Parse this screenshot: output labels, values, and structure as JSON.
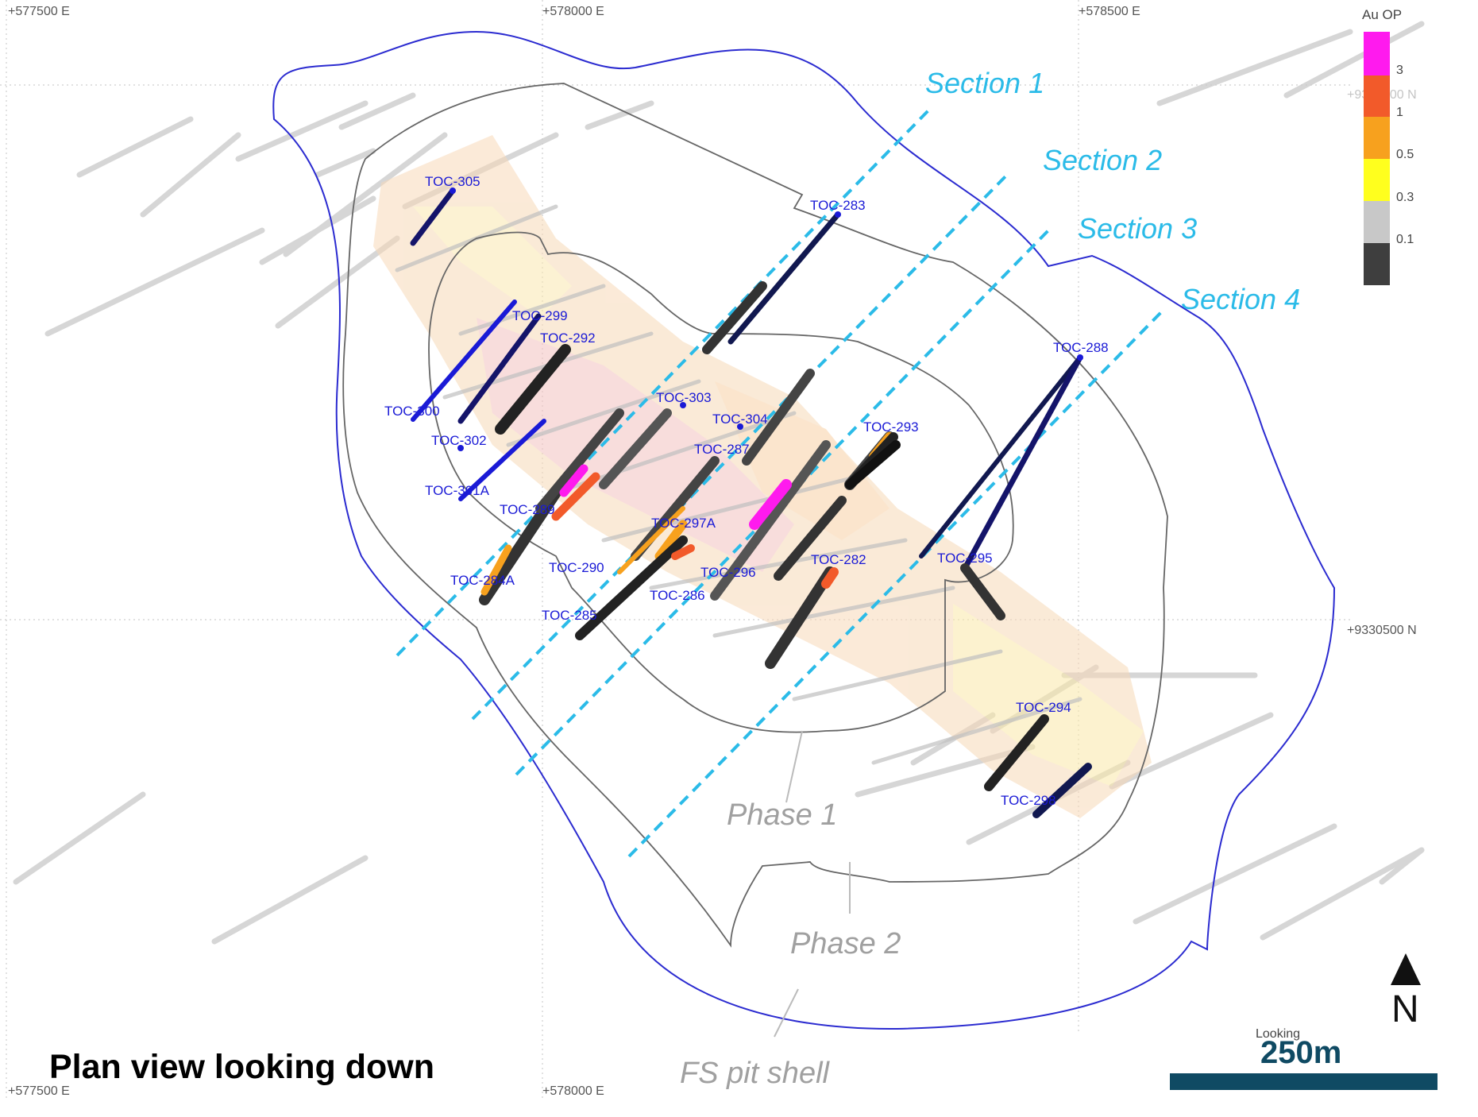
{
  "grid": {
    "easting_top": [
      "+577500 E",
      "+578000 E",
      "+578500 E"
    ],
    "easting_bottom": [
      "+577500 E",
      "+578000 E"
    ],
    "northing": [
      "+9330500 N",
      "+9330500 N"
    ]
  },
  "legend": {
    "title": "Au OP",
    "bins": [
      {
        "label": "3",
        "color": "#ff1aee"
      },
      {
        "label": "1",
        "color": "#f25a2a"
      },
      {
        "label": "0.5",
        "color": "#f7a11e"
      },
      {
        "label": "0.3",
        "color": "#ffff1e"
      },
      {
        "label": "0.1",
        "color": "#c8c8c8"
      },
      {
        "label": "",
        "color": "#3e3e3e"
      }
    ]
  },
  "sections": [
    "Section 1",
    "Section 2",
    "Section 3",
    "Section 4"
  ],
  "drillholes": [
    "TOC-305",
    "TOC-283",
    "TOC-299",
    "TOC-292",
    "TOC-300",
    "TOC-302",
    "TOC-303",
    "TOC-304",
    "TOC-293",
    "TOC-287",
    "TOC-301A",
    "TOC-289",
    "TOC-297A",
    "TOC-288",
    "TOC-295",
    "TOC-282",
    "TOC-284A",
    "TOC-290",
    "TOC-296",
    "TOC-285",
    "TOC-286",
    "TOC-294",
    "TOC-298"
  ],
  "pit_labels": {
    "phase1": "Phase 1",
    "phase2": "Phase 2",
    "fs": "FS pit shell"
  },
  "view_title": "Plan view looking down",
  "scale": {
    "label": "250m",
    "looking": "Looking"
  },
  "north": "N",
  "colors": {
    "fs_shell": "#2b2bd0",
    "phase_shell": "#555555",
    "section_line": "#2bbbe8",
    "scale_bar": "#0f4a63"
  }
}
